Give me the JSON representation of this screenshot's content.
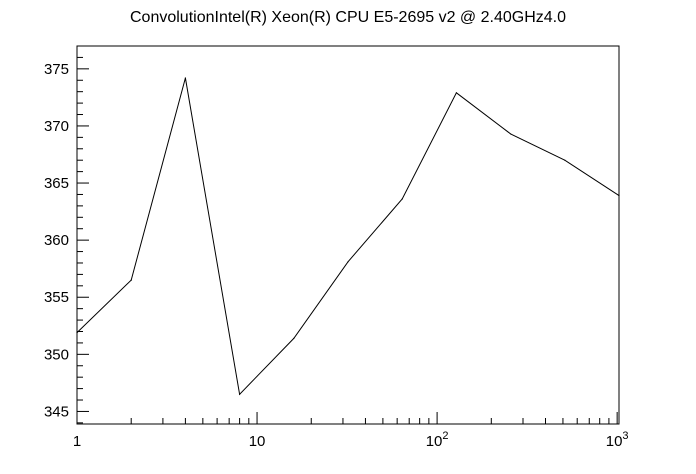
{
  "chart_data": {
    "type": "line",
    "title": "ConvolutionIntel(R) Xeon(R) CPU E5-2695 v2 @ 2.40GHz4.0",
    "xlabel": "",
    "ylabel": "",
    "xscale": "log",
    "xlim": [
      1,
      1024
    ],
    "ylim": [
      343.9,
      377.0
    ],
    "grid": false,
    "x_ticks": [
      {
        "value": 1,
        "base": "1",
        "exp": ""
      },
      {
        "value": 10,
        "base": "10",
        "exp": ""
      },
      {
        "value": 100,
        "base": "10",
        "exp": "2"
      },
      {
        "value": 1000,
        "base": "10",
        "exp": "3"
      }
    ],
    "y_ticks": [
      345,
      350,
      355,
      360,
      365,
      370,
      375
    ],
    "series": [
      {
        "x": [
          1,
          2,
          4,
          8,
          16,
          32,
          64,
          128,
          256,
          512,
          1024
        ],
        "y": [
          351.9,
          356.5,
          374.2,
          346.5,
          351.4,
          358.1,
          363.6,
          372.9,
          369.3,
          367.0,
          363.9
        ]
      }
    ]
  }
}
